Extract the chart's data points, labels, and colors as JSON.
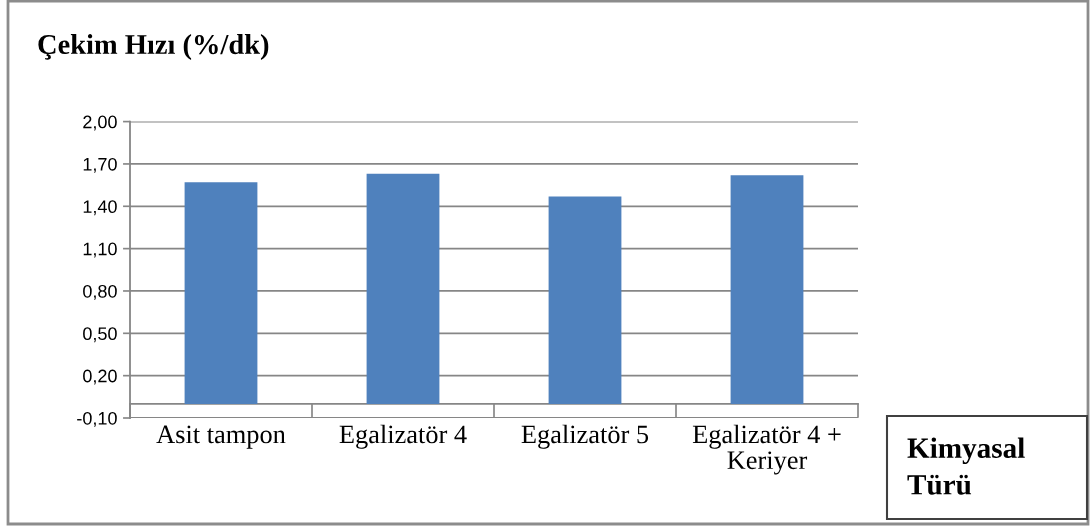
{
  "chart_data": {
    "type": "bar",
    "ylabel": "Çekim Hızı (%/dk)",
    "xlabel": "Kimyasal\nTürü",
    "categories": [
      "Asit tampon",
      "Egalizatör 4",
      "Egalizatör 5",
      "Egalizatör 4 +\nKeriyer"
    ],
    "values": [
      1.57,
      1.63,
      1.47,
      1.62
    ],
    "color": "#4f81bd",
    "ylim": [
      -0.1,
      2.0
    ],
    "yticks": [
      {
        "value": -0.1,
        "label": "-0,10"
      },
      {
        "value": 0.2,
        "label": "0,20"
      },
      {
        "value": 0.5,
        "label": "0,50"
      },
      {
        "value": 0.8,
        "label": "0,80"
      },
      {
        "value": 1.1,
        "label": "1,10"
      },
      {
        "value": 1.4,
        "label": "1,40"
      },
      {
        "value": 1.7,
        "label": "1,70"
      },
      {
        "value": 2.0,
        "label": "2,00"
      }
    ],
    "grid": "y"
  }
}
